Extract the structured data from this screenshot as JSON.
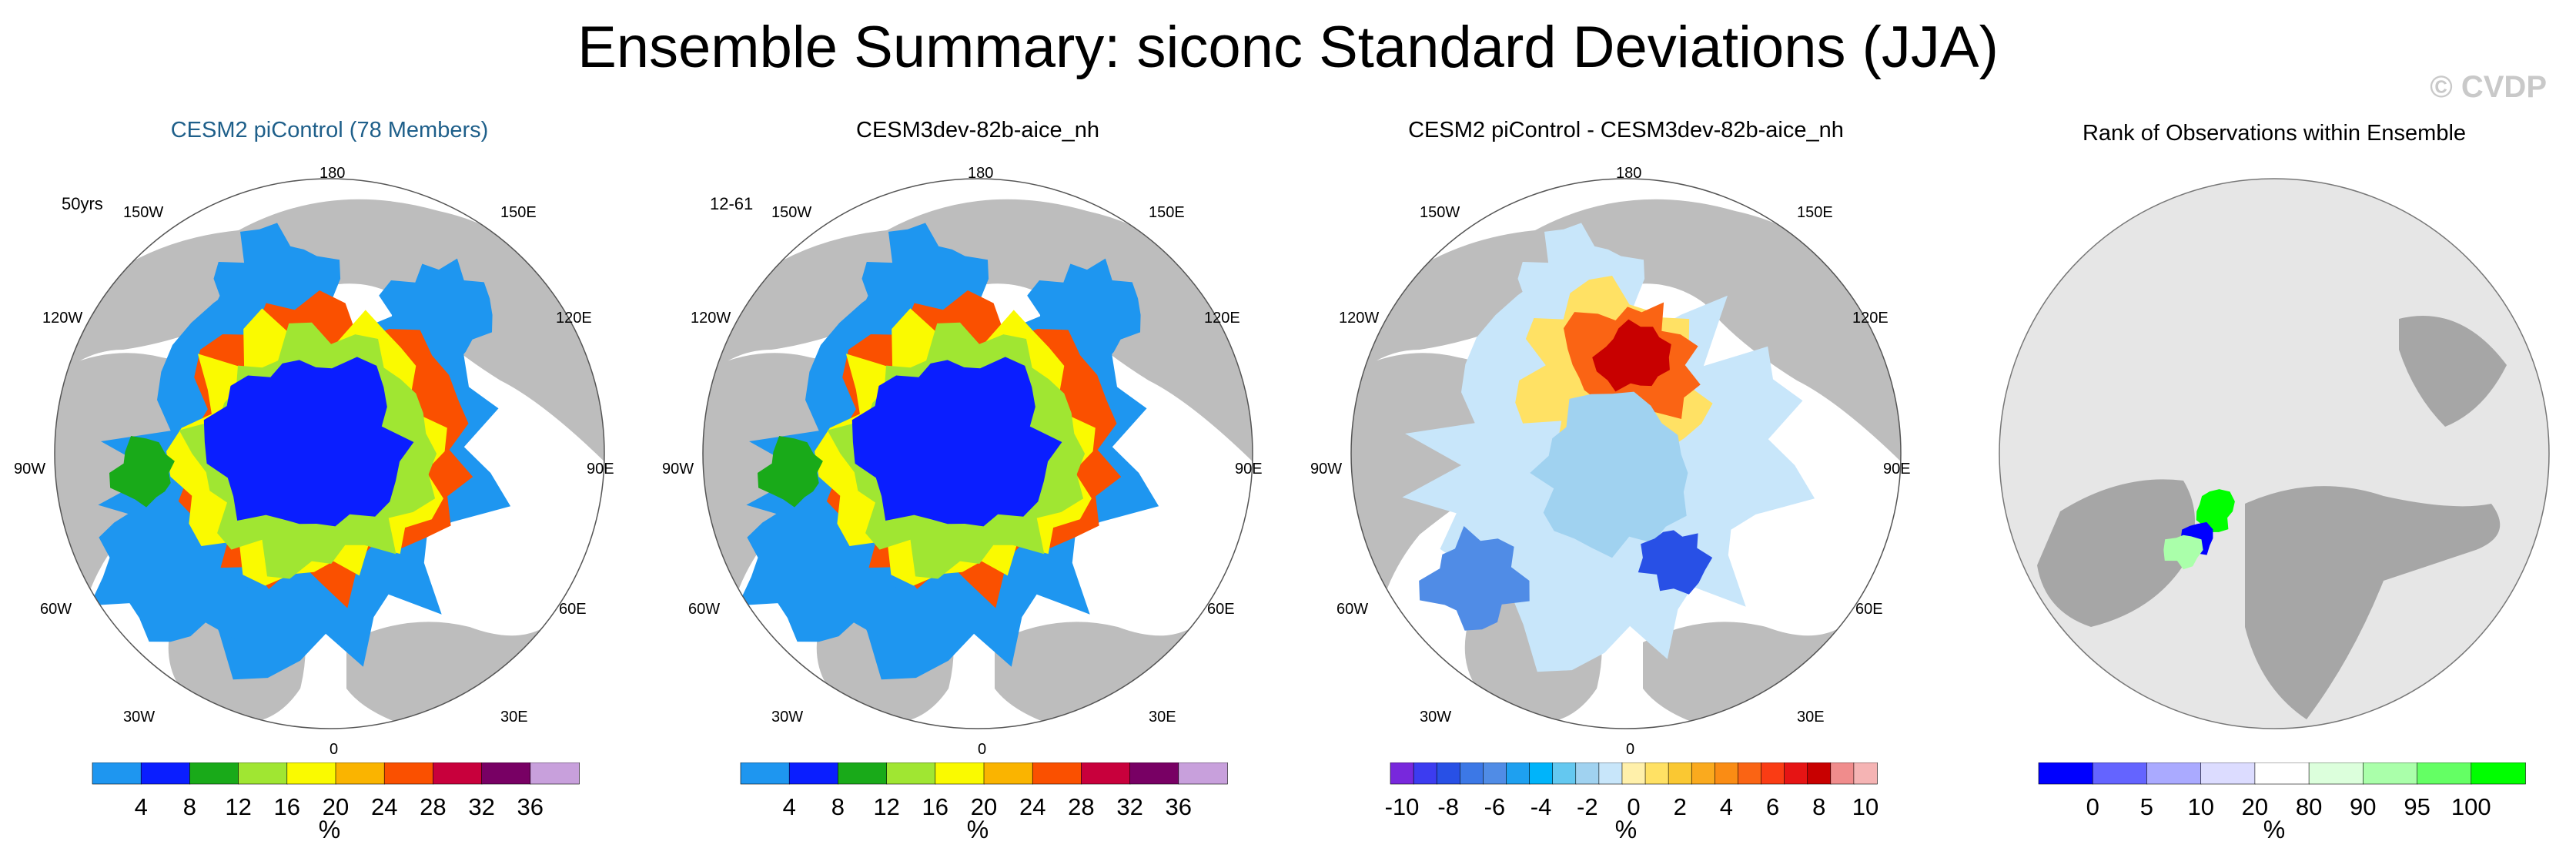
{
  "title": "Ensemble Summary: siconc Standard Deviations (JJA)",
  "watermark": "© CVDP",
  "panels": [
    {
      "title": "CESM2 piControl (78 Members)",
      "period": "50yrs"
    },
    {
      "title": "CESM3dev-82b-aice_nh",
      "period": "12-61"
    },
    {
      "title": "CESM2 piControl - CESM3dev-82b-aice_nh",
      "period": ""
    },
    {
      "title": "Rank of Observations within Ensemble",
      "period": ""
    }
  ],
  "lon_labels": {
    "n180": "180",
    "w150": "150W",
    "e150": "150E",
    "w120": "120W",
    "e120": "120E",
    "w90": "90W",
    "e90": "90E",
    "w60": "60W",
    "e60": "60E",
    "w30": "30W",
    "e30": "30E",
    "s0": "0"
  },
  "colors": {
    "land": "#bdbdbd",
    "ocean": "#ffffff",
    "std_scale": [
      "#1e96f0",
      "#0a1eff",
      "#19aa19",
      "#a0e632",
      "#fafa00",
      "#fab400",
      "#fa5000",
      "#c8003c",
      "#780064",
      "#c8a0dc"
    ],
    "diff_scale": [
      "#7828dc",
      "#3c3cf0",
      "#2850e6",
      "#3c78e6",
      "#508ce6",
      "#1ea0f0",
      "#00b4fa",
      "#64c8f0",
      "#a0d2f0",
      "#c8e6fa",
      "#fff0aa",
      "#ffe164",
      "#fac832",
      "#faaa1e",
      "#fa8c14",
      "#fa6414",
      "#fa3c14",
      "#e61414",
      "#c80000",
      "#f08c8c",
      "#f5b4b4"
    ],
    "rank_scale": [
      "#0000ff",
      "#6464ff",
      "#aaaaff",
      "#dcdcff",
      "#ffffff",
      "#dcffdc",
      "#aaffaa",
      "#64ff64",
      "#00ff00"
    ]
  },
  "chart_data": [
    {
      "type": "heatmap",
      "title": "CESM2 piControl (78 Members)",
      "period": "50yrs",
      "projection": "north-polar-stereographic",
      "colorbar": {
        "unit": "%",
        "levels": [
          4,
          8,
          12,
          16,
          20,
          24,
          28,
          32,
          36
        ],
        "tick_labels": [
          "4",
          "8",
          "12",
          "16",
          "20",
          "24",
          "28",
          "32",
          "36"
        ]
      }
    },
    {
      "type": "heatmap",
      "title": "CESM3dev-82b-aice_nh",
      "period": "12-61",
      "projection": "north-polar-stereographic",
      "colorbar": {
        "unit": "%",
        "levels": [
          4,
          8,
          12,
          16,
          20,
          24,
          28,
          32,
          36
        ],
        "tick_labels": [
          "4",
          "8",
          "12",
          "16",
          "20",
          "24",
          "28",
          "32",
          "36"
        ]
      }
    },
    {
      "type": "heatmap",
      "title": "CESM2 piControl - CESM3dev-82b-aice_nh",
      "projection": "north-polar-stereographic",
      "colorbar": {
        "unit": "%",
        "levels": [
          -10,
          -9,
          -8,
          -7,
          -6,
          -5,
          -4,
          -3,
          -2,
          -1,
          0,
          1,
          2,
          3,
          4,
          5,
          6,
          7,
          8,
          9,
          10
        ],
        "tick_labels": [
          "-10",
          "-8",
          "-6",
          "-4",
          "-2",
          "0",
          "2",
          "4",
          "6",
          "8",
          "10"
        ]
      }
    },
    {
      "type": "heatmap",
      "title": "Rank of Observations within Ensemble",
      "projection": "north-polar-stereographic",
      "colorbar": {
        "unit": "%",
        "levels": [
          0,
          5,
          10,
          20,
          80,
          90,
          95,
          100
        ],
        "tick_labels": [
          "0",
          "5",
          "10",
          "20",
          "80",
          "90",
          "95",
          "100"
        ]
      }
    }
  ]
}
